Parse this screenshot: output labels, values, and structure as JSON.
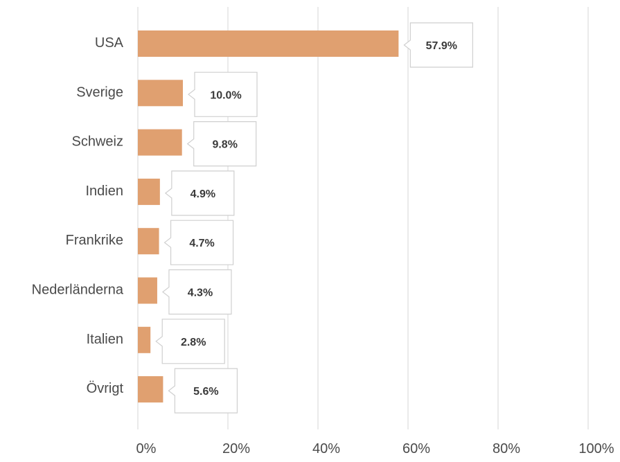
{
  "chart_data": {
    "type": "bar",
    "orientation": "horizontal",
    "categories": [
      "USA",
      "Sverige",
      "Schweiz",
      "Indien",
      "Frankrike",
      "Nederländerna",
      "Italien",
      "Övrigt"
    ],
    "values": [
      57.9,
      10.0,
      9.8,
      4.9,
      4.7,
      4.3,
      2.8,
      5.6
    ],
    "data_labels": [
      "57.9%",
      "10.0%",
      "9.8%",
      "4.9%",
      "4.7%",
      "4.3%",
      "2.8%",
      "5.6%"
    ],
    "xlim": [
      0,
      100
    ],
    "x_ticks": [
      0,
      20,
      40,
      60,
      80,
      100
    ],
    "x_tick_labels": [
      "0%",
      "20%",
      "40%",
      "60%",
      "80%",
      "100%"
    ],
    "grid": true,
    "bar_color": "#e0a070",
    "title": "",
    "xlabel": "",
    "ylabel": ""
  }
}
